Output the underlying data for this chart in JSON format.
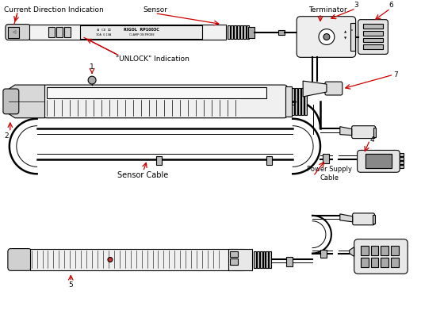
{
  "bg_color": "#ffffff",
  "line_color": "#000000",
  "red_color": "#cc0000",
  "labels": {
    "current_direction": "Current Direction Indication",
    "sensor": "Sensor",
    "unlock": "\"UNLOCK\" Indication",
    "terminator": "Terminator",
    "num3": "3",
    "num6": "6",
    "num7": "7",
    "num1": "1",
    "num2": "2",
    "num4": "4",
    "num5": "5",
    "sensor_cable": "Sensor Cable",
    "power_supply_cable": "Power Supply\nCable"
  },
  "fig_width": 5.31,
  "fig_height": 3.91,
  "dpi": 100
}
